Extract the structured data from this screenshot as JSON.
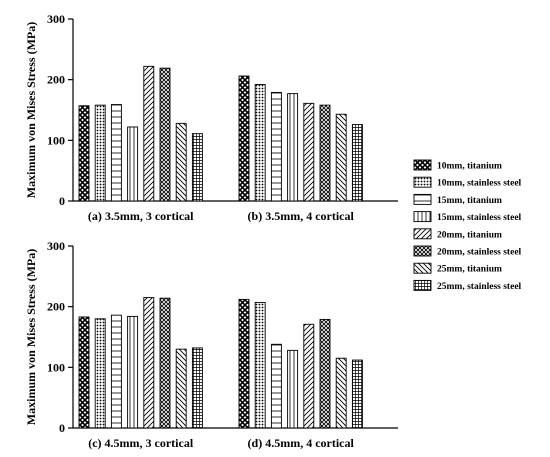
{
  "chart_data": {
    "type": "bar",
    "ylabel": "Maximum von Mises Stress (MPa)",
    "ylim": [
      0,
      300
    ],
    "yticks": [
      "0",
      "100",
      "200",
      "300"
    ],
    "series": [
      {
        "name": "10mm, titanium",
        "pattern": "crosshatch"
      },
      {
        "name": "10mm, stainless steel",
        "pattern": "dots"
      },
      {
        "name": "15mm, titanium",
        "pattern": "hlines"
      },
      {
        "name": "15mm, stainless steel",
        "pattern": "vlines"
      },
      {
        "name": "20mm, titanium",
        "pattern": "diag-forward"
      },
      {
        "name": "20mm, stainless steel",
        "pattern": "diag-cross"
      },
      {
        "name": "25mm, titanium",
        "pattern": "diag-back"
      },
      {
        "name": "25mm, stainless steel",
        "pattern": "grid"
      }
    ],
    "panels": [
      {
        "label": "(a) 3.5mm, 3 cortical",
        "values": [
          157,
          158,
          159,
          122,
          222,
          219,
          128,
          111
        ]
      },
      {
        "label": "(b) 3.5mm, 4 cortical",
        "values": [
          206,
          192,
          179,
          177,
          161,
          158,
          143,
          126
        ]
      },
      {
        "label": "(c) 4.5mm, 3 cortical",
        "values": [
          183,
          180,
          186,
          184,
          215,
          214,
          130,
          132
        ]
      },
      {
        "label": "(d) 4.5mm, 4 cortical",
        "values": [
          212,
          207,
          138,
          128,
          171,
          179,
          115,
          112
        ]
      }
    ]
  }
}
